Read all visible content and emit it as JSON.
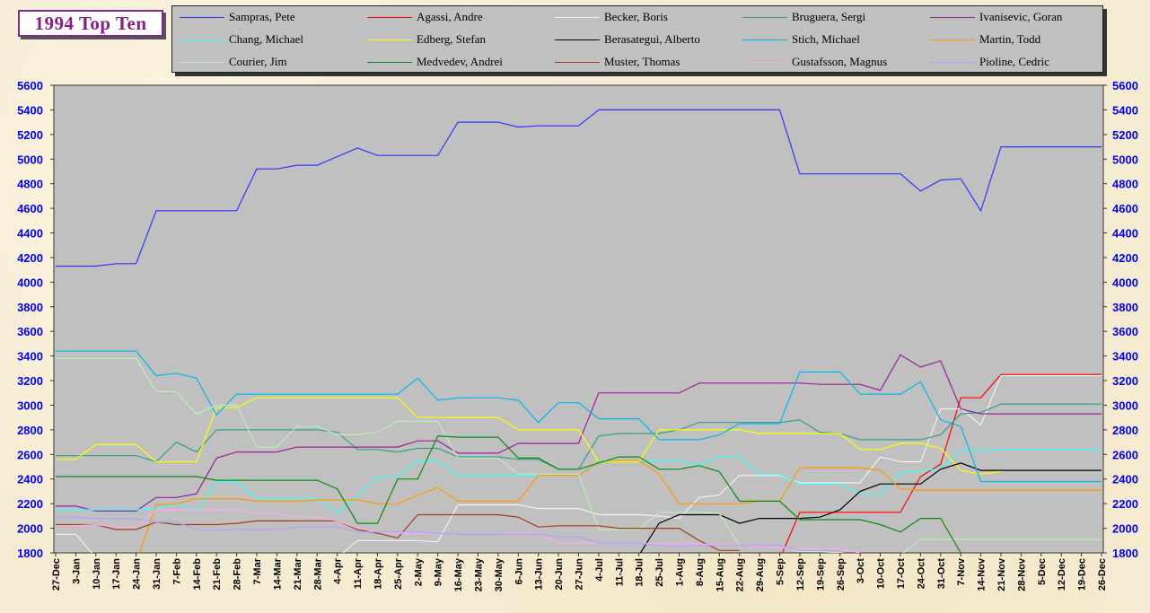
{
  "title": "1994 Top Ten",
  "chart_data": {
    "type": "line",
    "title": "1994 Top Ten",
    "xlabel": "",
    "ylabel": "",
    "ylim": [
      1800,
      5600
    ],
    "yticks": [
      1800,
      2000,
      2200,
      2400,
      2600,
      2800,
      3000,
      3200,
      3400,
      3600,
      3800,
      4000,
      4200,
      4400,
      4600,
      4800,
      5000,
      5200,
      5400,
      5600
    ],
    "y_axes": [
      "left",
      "right"
    ],
    "grid": false,
    "legend_position": "top",
    "x": [
      "27-Dec",
      "3-Jan",
      "10-Jan",
      "17-Jan",
      "24-Jan",
      "31-Jan",
      "7-Feb",
      "14-Feb",
      "21-Feb",
      "28-Feb",
      "7-Mar",
      "14-Mar",
      "21-Mar",
      "28-Mar",
      "4-Apr",
      "11-Apr",
      "18-Apr",
      "25-Apr",
      "2-May",
      "9-May",
      "16-May",
      "23-May",
      "30-May",
      "6-Jun",
      "13-Jun",
      "20-Jun",
      "27-Jun",
      "4-Jul",
      "11-Jul",
      "18-Jul",
      "25-Jul",
      "1-Aug",
      "8-Aug",
      "15-Aug",
      "22-Aug",
      "29-Aug",
      "5-Sep",
      "12-Sep",
      "19-Sep",
      "26-Sep",
      "3-Oct",
      "10-Oct",
      "17-Oct",
      "24-Oct",
      "31-Oct",
      "7-Nov",
      "14-Nov",
      "21-Nov",
      "28-Nov",
      "5-Dec",
      "12-Dec",
      "19-Dec",
      "26-Dec"
    ],
    "series": [
      {
        "name": "Sampras, Pete",
        "color": "#3333ff",
        "values": [
          4130,
          4130,
          4130,
          4150,
          4150,
          4580,
          4580,
          4580,
          4580,
          4580,
          4920,
          4920,
          4950,
          4950,
          5020,
          5090,
          5030,
          5030,
          5030,
          5030,
          5300,
          5300,
          5300,
          5260,
          5270,
          5270,
          5270,
          5400,
          5400,
          5400,
          5400,
          5400,
          5400,
          5400,
          5400,
          5400,
          5400,
          4880,
          4880,
          4880,
          4880,
          4880,
          4880,
          4740,
          4830,
          4840,
          4580,
          5100,
          5100,
          5100,
          5100,
          5100,
          5100
        ]
      },
      {
        "name": "Agassi, Andre",
        "color": "#ff0000",
        "values": [
          null,
          null,
          null,
          null,
          null,
          null,
          null,
          null,
          null,
          null,
          null,
          null,
          null,
          null,
          null,
          null,
          null,
          null,
          null,
          null,
          null,
          null,
          null,
          null,
          null,
          null,
          null,
          null,
          null,
          null,
          null,
          null,
          null,
          null,
          null,
          null,
          1750,
          2130,
          2130,
          2130,
          2130,
          2130,
          2130,
          2420,
          2520,
          3060,
          3060,
          3250,
          3250,
          3250,
          3250,
          3250,
          3250
        ]
      },
      {
        "name": "Becker, Boris",
        "color": "#f0f0f0",
        "values": [
          1950,
          1950,
          1760,
          1760,
          1760,
          1760,
          1760,
          1760,
          1760,
          1760,
          1760,
          1760,
          1760,
          1760,
          1760,
          1900,
          1900,
          1900,
          1900,
          1890,
          2190,
          2190,
          2190,
          2190,
          2160,
          2160,
          2160,
          2110,
          2110,
          2110,
          2100,
          2080,
          2250,
          2270,
          2430,
          2430,
          2430,
          2370,
          2370,
          2370,
          2370,
          2580,
          2540,
          2540,
          2970,
          2970,
          2840,
          3240,
          3240,
          3240,
          3240,
          3240,
          3240
        ]
      },
      {
        "name": "Bruguera, Sergi",
        "color": "#33a080",
        "values": [
          2590,
          2590,
          2590,
          2590,
          2590,
          2540,
          2700,
          2620,
          2800,
          2800,
          2800,
          2800,
          2800,
          2800,
          2780,
          2640,
          2640,
          2620,
          2650,
          2650,
          2580,
          2580,
          2580,
          2560,
          2560,
          2480,
          2480,
          2750,
          2770,
          2770,
          2770,
          2800,
          2860,
          2860,
          2860,
          2860,
          2860,
          2880,
          2780,
          2770,
          2720,
          2720,
          2720,
          2720,
          2760,
          2930,
          2940,
          3010,
          3010,
          3010,
          3010,
          3010,
          3010
        ]
      },
      {
        "name": "Ivanisevic, Goran",
        "color": "#9b1f9b",
        "values": [
          2180,
          2180,
          2140,
          2140,
          2140,
          2250,
          2250,
          2280,
          2570,
          2620,
          2620,
          2620,
          2660,
          2660,
          2660,
          2660,
          2660,
          2660,
          2710,
          2710,
          2610,
          2610,
          2610,
          2690,
          2690,
          2690,
          2690,
          3100,
          3100,
          3100,
          3100,
          3100,
          3180,
          3180,
          3180,
          3180,
          3180,
          3180,
          3170,
          3170,
          3170,
          3120,
          3410,
          3310,
          3360,
          2970,
          2930,
          2930,
          2930,
          2930,
          2930,
          2930,
          2930
        ]
      },
      {
        "name": "Chang, Michael",
        "color": "#33ffff",
        "values": [
          2150,
          2150,
          2150,
          2150,
          2150,
          2160,
          2200,
          2140,
          2380,
          2380,
          2240,
          2240,
          2240,
          2240,
          2130,
          2260,
          2420,
          2420,
          2550,
          2550,
          2430,
          2430,
          2430,
          2430,
          2430,
          2430,
          2430,
          2550,
          2550,
          2550,
          2550,
          2550,
          2510,
          2580,
          2580,
          2440,
          2440,
          2360,
          2360,
          2360,
          2280,
          2280,
          2450,
          2470,
          2480,
          2640,
          2630,
          2640,
          2640,
          2640,
          2640,
          2640,
          2640
        ]
      },
      {
        "name": "Edberg, Stefan",
        "color": "#ffff00",
        "values": [
          2560,
          2560,
          2680,
          2680,
          2680,
          2540,
          2540,
          2540,
          2980,
          2980,
          3060,
          3060,
          3060,
          3060,
          3060,
          3060,
          3060,
          3060,
          2900,
          2900,
          2900,
          2900,
          2900,
          2800,
          2800,
          2800,
          2800,
          2540,
          2540,
          2540,
          2800,
          2800,
          2800,
          2800,
          2800,
          2770,
          2770,
          2770,
          2770,
          2770,
          2640,
          2640,
          2690,
          2690,
          2650,
          2470,
          2440,
          2460,
          null,
          null,
          null,
          null,
          null
        ]
      },
      {
        "name": "Berasategui, Alberto",
        "color": "#000000",
        "values": [
          null,
          null,
          null,
          null,
          null,
          null,
          null,
          null,
          null,
          null,
          null,
          null,
          null,
          null,
          null,
          null,
          null,
          null,
          null,
          null,
          null,
          null,
          null,
          null,
          null,
          null,
          null,
          null,
          null,
          1780,
          2040,
          2110,
          2110,
          2110,
          2040,
          2080,
          2080,
          2080,
          2090,
          2150,
          2300,
          2360,
          2360,
          2360,
          2480,
          2530,
          2470,
          2470,
          2470,
          2470,
          2470,
          2470,
          2470
        ]
      },
      {
        "name": "Stich, Michael",
        "color": "#00b8f0",
        "values": [
          3440,
          3440,
          3440,
          3440,
          3440,
          3240,
          3260,
          3220,
          2920,
          3090,
          3090,
          3090,
          3090,
          3090,
          3090,
          3090,
          3090,
          3090,
          3220,
          3040,
          3060,
          3060,
          3060,
          3040,
          2860,
          3020,
          3020,
          2890,
          2890,
          2890,
          2720,
          2720,
          2720,
          2760,
          2850,
          2850,
          2850,
          3270,
          3270,
          3270,
          3090,
          3090,
          3090,
          3190,
          2880,
          2830,
          2380,
          2380,
          2380,
          2380,
          2380,
          2380,
          2380
        ]
      },
      {
        "name": "Martin, Todd",
        "color": "#ff9900",
        "values": [
          null,
          null,
          null,
          null,
          1720,
          2190,
          2200,
          2240,
          2240,
          2240,
          2220,
          2220,
          2220,
          2230,
          2230,
          2230,
          2200,
          2200,
          2270,
          2330,
          2220,
          2220,
          2220,
          2220,
          2430,
          2430,
          2430,
          2540,
          2550,
          2550,
          2440,
          2200,
          2200,
          2200,
          2200,
          2220,
          2220,
          2490,
          2490,
          2490,
          2490,
          2470,
          2320,
          2310,
          2310,
          2310,
          2310,
          2310,
          2310,
          2310,
          2310,
          2310,
          2310
        ]
      },
      {
        "name": "Courier, Jim",
        "color": "#bbeebb",
        "values": [
          3380,
          3380,
          3380,
          3380,
          3380,
          3110,
          3110,
          2930,
          3000,
          3000,
          2660,
          2660,
          2830,
          2830,
          2760,
          2760,
          2780,
          2870,
          2870,
          2870,
          2570,
          2570,
          2570,
          2440,
          2440,
          2440,
          2440,
          1990,
          1990,
          1990,
          2130,
          2130,
          2130,
          2120,
          1860,
          1860,
          1860,
          1810,
          1810,
          1800,
          1780,
          1780,
          1780,
          1910,
          1910,
          1910,
          1910,
          1910,
          1910,
          1910,
          1910,
          1910,
          1910
        ]
      },
      {
        "name": "Medvedev, Andrei",
        "color": "#118811",
        "values": [
          2420,
          2420,
          2420,
          2420,
          2420,
          2420,
          2420,
          2420,
          2390,
          2390,
          2390,
          2390,
          2390,
          2390,
          2320,
          2040,
          2040,
          2400,
          2400,
          2750,
          2740,
          2740,
          2740,
          2570,
          2570,
          2480,
          2480,
          2530,
          2580,
          2580,
          2480,
          2480,
          2510,
          2460,
          2220,
          2220,
          2220,
          2070,
          2070,
          2070,
          2070,
          2030,
          1970,
          2080,
          2080,
          1800,
          null,
          null,
          null,
          null,
          null,
          null,
          null
        ]
      },
      {
        "name": "Muster, Thomas",
        "color": "#a0401a",
        "values": [
          2030,
          2030,
          2030,
          1990,
          1990,
          2050,
          2030,
          2030,
          2030,
          2040,
          2060,
          2060,
          2060,
          2060,
          2060,
          1990,
          1960,
          1920,
          2110,
          2110,
          2110,
          2110,
          2110,
          2090,
          2010,
          2020,
          2020,
          2020,
          2000,
          2000,
          2000,
          2000,
          1900,
          1820,
          1820,
          null,
          null,
          null,
          null,
          null,
          null,
          null,
          null,
          null,
          null,
          null,
          null,
          null,
          null,
          null,
          null,
          null,
          null
        ]
      },
      {
        "name": "Gustafsson, Magnus",
        "color": "#ffaaee",
        "values": [
          2020,
          2020,
          2030,
          2010,
          2010,
          2150,
          2150,
          2150,
          2150,
          2150,
          2120,
          2120,
          2090,
          2090,
          2060,
          2000,
          1970,
          1960,
          1960,
          1960,
          1950,
          1950,
          1950,
          1960,
          1950,
          1880,
          1880,
          1880,
          1880,
          1880,
          1870,
          1870,
          1870,
          1870,
          1860,
          1850,
          1840,
          1830,
          1830,
          1830,
          1800,
          null,
          null,
          null,
          null,
          null,
          null,
          null,
          null,
          null,
          null,
          null,
          null
        ]
      },
      {
        "name": "Pioline, Cedric",
        "color": "#b0a0ff",
        "values": [
          2090,
          2090,
          2080,
          2080,
          2080,
          2050,
          2050,
          1990,
          1990,
          1990,
          1990,
          1990,
          2010,
          2010,
          2010,
          1970,
          1970,
          1970,
          1970,
          1960,
          1950,
          1950,
          1950,
          1950,
          1950,
          1930,
          1930,
          1880,
          1880,
          1880,
          1860,
          1860,
          1860,
          1860,
          1860,
          1860,
          1860,
          1820,
          1820,
          1820,
          null,
          null,
          null,
          null,
          null,
          null,
          null,
          null,
          null,
          null,
          null,
          null,
          null
        ]
      }
    ]
  }
}
